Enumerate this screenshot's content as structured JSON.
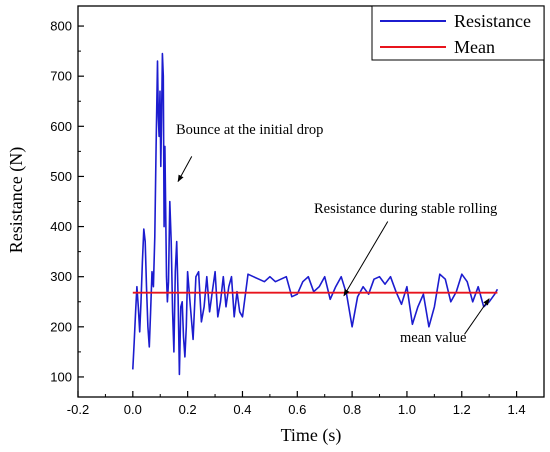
{
  "colors": {
    "resistance": "#1c1ccf",
    "mean": "#e8141c",
    "axis": "#000000"
  },
  "chart_data": {
    "type": "line",
    "xlabel": "Time (s)",
    "ylabel": "Resistance (N)",
    "xlim": [
      -0.2,
      1.5
    ],
    "ylim": [
      60,
      840
    ],
    "x_ticks": [
      "-0.2",
      "0.0",
      "0.2",
      "0.4",
      "0.6",
      "0.8",
      "1.0",
      "1.2",
      "1.4"
    ],
    "y_ticks": [
      "100",
      "200",
      "300",
      "400",
      "500",
      "600",
      "700",
      "800"
    ],
    "grid": false,
    "legend_position": "top-right",
    "legend": [
      "Resistance",
      "Mean"
    ],
    "series": [
      {
        "name": "Resistance",
        "style": "line",
        "x": [
          0.0,
          0.005,
          0.01,
          0.015,
          0.02,
          0.025,
          0.03,
          0.035,
          0.04,
          0.045,
          0.05,
          0.055,
          0.06,
          0.065,
          0.07,
          0.075,
          0.08,
          0.085,
          0.09,
          0.093,
          0.096,
          0.099,
          0.102,
          0.105,
          0.108,
          0.111,
          0.114,
          0.117,
          0.12,
          0.123,
          0.126,
          0.13,
          0.135,
          0.14,
          0.145,
          0.15,
          0.155,
          0.16,
          0.165,
          0.17,
          0.175,
          0.18,
          0.185,
          0.19,
          0.195,
          0.2,
          0.21,
          0.22,
          0.23,
          0.24,
          0.25,
          0.26,
          0.27,
          0.28,
          0.29,
          0.3,
          0.31,
          0.32,
          0.33,
          0.34,
          0.35,
          0.36,
          0.37,
          0.38,
          0.39,
          0.4,
          0.42,
          0.44,
          0.46,
          0.48,
          0.5,
          0.52,
          0.54,
          0.56,
          0.58,
          0.6,
          0.62,
          0.64,
          0.66,
          0.68,
          0.7,
          0.72,
          0.74,
          0.76,
          0.78,
          0.8,
          0.82,
          0.84,
          0.86,
          0.88,
          0.9,
          0.92,
          0.94,
          0.96,
          0.98,
          1.0,
          1.02,
          1.04,
          1.06,
          1.08,
          1.1,
          1.12,
          1.14,
          1.16,
          1.18,
          1.2,
          1.22,
          1.24,
          1.26,
          1.28,
          1.3,
          1.32,
          1.33
        ],
        "y": [
          115,
          170,
          230,
          280,
          240,
          190,
          250,
          330,
          395,
          370,
          280,
          200,
          160,
          230,
          310,
          280,
          380,
          560,
          730,
          620,
          580,
          670,
          520,
          620,
          745,
          700,
          400,
          560,
          430,
          300,
          250,
          290,
          450,
          370,
          230,
          150,
          310,
          370,
          260,
          105,
          240,
          250,
          180,
          140,
          200,
          310,
          240,
          175,
          300,
          310,
          210,
          240,
          300,
          230,
          270,
          310,
          220,
          250,
          300,
          240,
          280,
          300,
          220,
          270,
          230,
          220,
          305,
          300,
          295,
          290,
          300,
          290,
          295,
          300,
          260,
          265,
          290,
          300,
          270,
          280,
          300,
          255,
          280,
          300,
          265,
          200,
          260,
          280,
          265,
          295,
          300,
          285,
          300,
          270,
          245,
          280,
          205,
          240,
          265,
          200,
          240,
          305,
          295,
          250,
          270,
          305,
          290,
          250,
          280,
          240,
          250,
          265,
          275
        ]
      },
      {
        "name": "Mean",
        "style": "line",
        "x": [
          0.0,
          1.33
        ],
        "y": [
          268,
          268
        ]
      }
    ],
    "annotations": [
      {
        "text": "Bounce at the initial drop",
        "arrow_from": [
          0.215,
          540
        ],
        "arrow_to": [
          0.165,
          490
        ]
      },
      {
        "text": "Resistance during stable rolling",
        "arrow_from": [
          0.93,
          410
        ],
        "arrow_to": [
          0.77,
          262
        ]
      },
      {
        "text": "mean value",
        "arrow_from": [
          1.21,
          185
        ],
        "arrow_to": [
          1.3,
          256
        ]
      }
    ]
  }
}
